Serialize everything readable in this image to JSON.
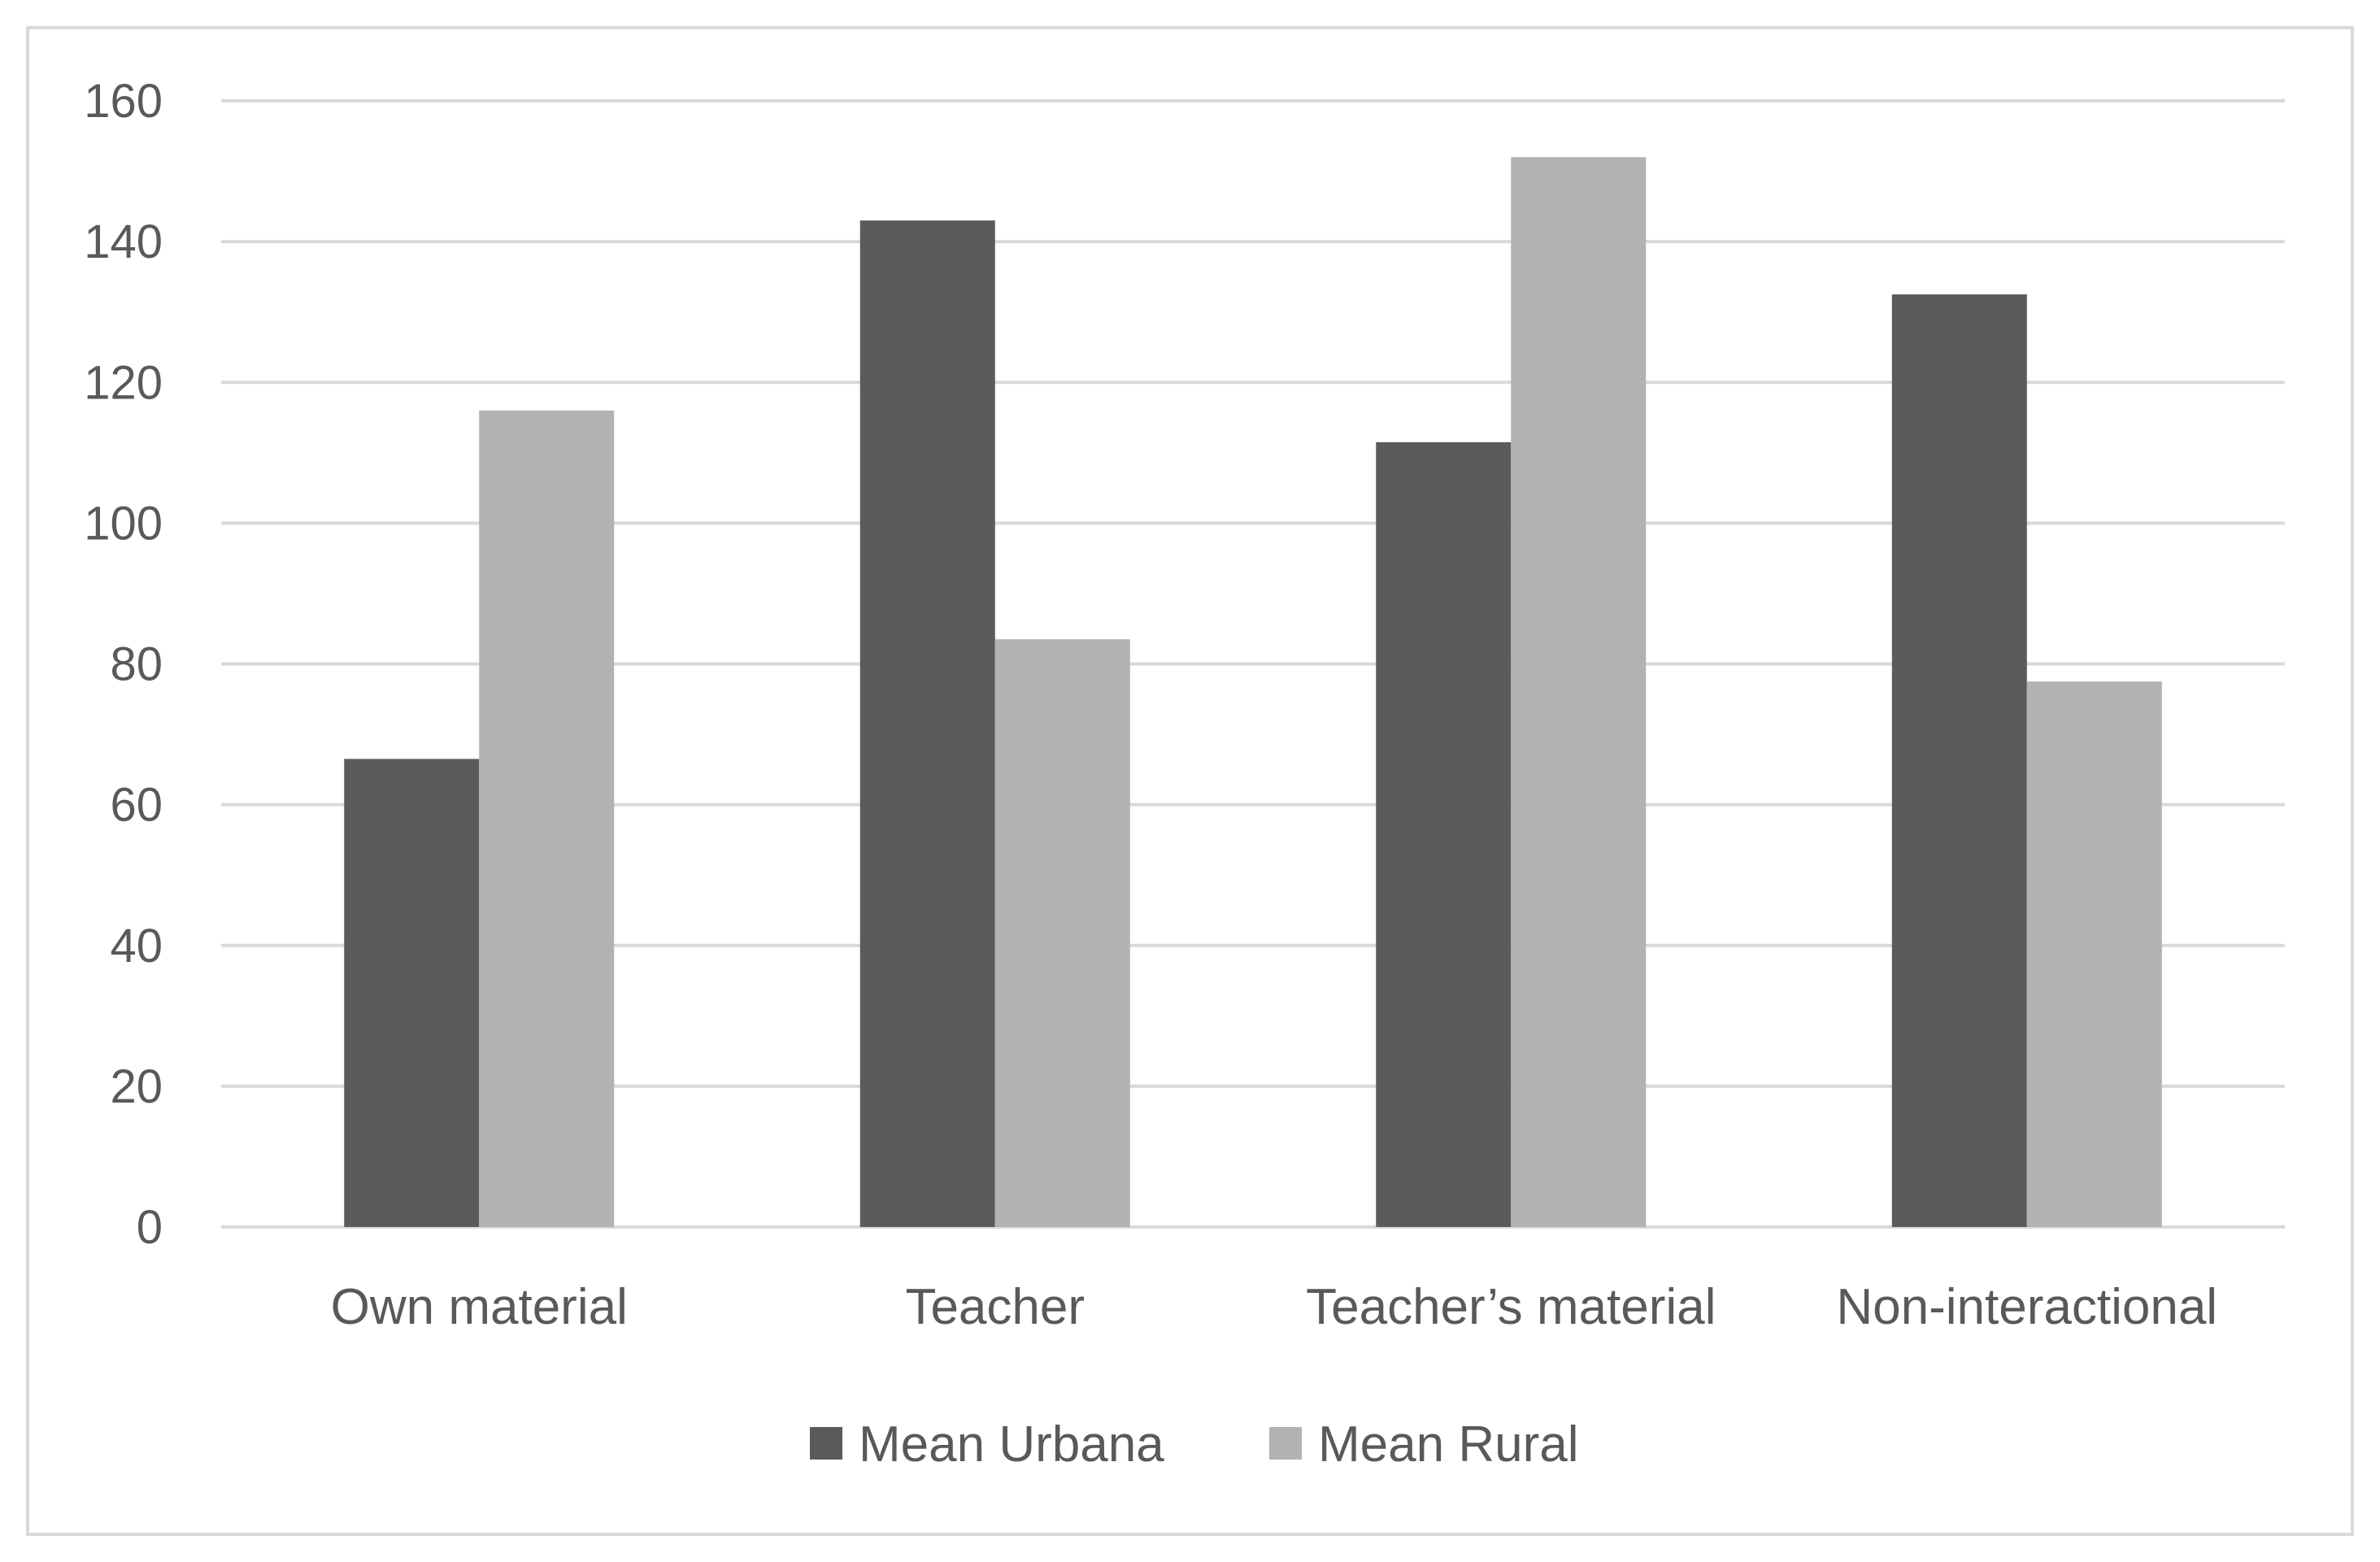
{
  "chart_data": {
    "type": "bar",
    "title": "",
    "xlabel": "",
    "ylabel": "",
    "categories": [
      "Own material",
      "Teacher",
      "Teacher’s material",
      "Non-interactional"
    ],
    "series": [
      {
        "name": "Mean Urbana",
        "color": "#5b5b5b",
        "values": [
          66.5,
          143,
          111.5,
          132.5
        ]
      },
      {
        "name": "Mean Rural",
        "color": "#b2b2b2",
        "values": [
          116,
          83.5,
          152,
          77.5
        ]
      }
    ],
    "ylim": [
      0,
      160
    ],
    "yticks": [
      0,
      20,
      40,
      60,
      80,
      100,
      120,
      140,
      160
    ],
    "grid": true,
    "legend_position": "bottom-center",
    "gridline_color": "#d9d9d9"
  }
}
